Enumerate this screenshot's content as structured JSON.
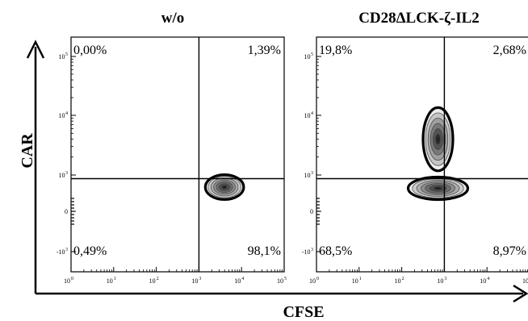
{
  "chart_data": {
    "type": "contour",
    "xlabel": "CFSE",
    "ylabel": "CAR",
    "x_axis_scale": "biexponential",
    "y_axis_scale": "biexponential",
    "x_tick_labels": [
      "10",
      "10",
      "10",
      "10",
      "10",
      "10"
    ],
    "x_tick_exponents": [
      "0",
      "1",
      "2",
      "3",
      "4",
      "5"
    ],
    "y_tick_labels": [
      {
        "base": "-10",
        "exp": "3"
      },
      {
        "base": "0",
        "exp": ""
      },
      {
        "base": "10",
        "exp": "3"
      },
      {
        "base": "10",
        "exp": "4"
      },
      {
        "base": "10",
        "exp": "5"
      }
    ],
    "quadrant_gate": {
      "x": 3.0,
      "y": 2.7
    },
    "panels": [
      {
        "title": "w/o",
        "quadrants": {
          "upper_left": "0,00%",
          "upper_right": "1,39%",
          "lower_left": "0,49%",
          "lower_right": "98,1%"
        },
        "populations": [
          {
            "center_x": 3.6,
            "center_y": 2.0,
            "spread_x": 0.45,
            "spread_y": 0.55
          }
        ]
      },
      {
        "title": "CD28ΔLCK-ζ-IL2",
        "quadrants": {
          "upper_left": "19,8%",
          "upper_right": "2,68%",
          "lower_left": "68,5%",
          "lower_right": "8,97%"
        },
        "populations": [
          {
            "center_x": 2.85,
            "center_y": 1.9,
            "spread_x": 0.7,
            "spread_y": 0.5
          },
          {
            "center_x": 2.85,
            "center_y": 3.6,
            "spread_x": 0.35,
            "spread_y": 1.4
          }
        ]
      }
    ]
  }
}
